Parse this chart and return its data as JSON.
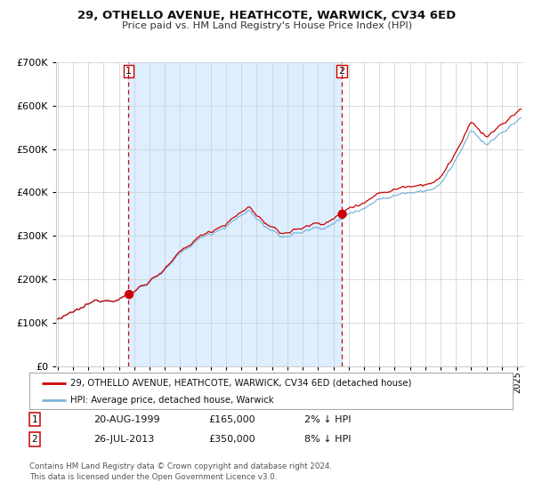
{
  "title": "29, OTHELLO AVENUE, HEATHCOTE, WARWICK, CV34 6ED",
  "subtitle": "Price paid vs. HM Land Registry's House Price Index (HPI)",
  "legend_line1": "29, OTHELLO AVENUE, HEATHCOTE, WARWICK, CV34 6ED (detached house)",
  "legend_line2": "HPI: Average price, detached house, Warwick",
  "sale1_date": "20-AUG-1999",
  "sale1_price": 165000,
  "sale1_label": "2% ↓ HPI",
  "sale1_year": 1999.63,
  "sale2_date": "26-JUL-2013",
  "sale2_price": 350000,
  "sale2_label": "8% ↓ HPI",
  "sale2_year": 2013.55,
  "footnote1": "Contains HM Land Registry data © Crown copyright and database right 2024.",
  "footnote2": "This data is licensed under the Open Government Licence v3.0.",
  "hpi_color": "#7ab4d8",
  "property_color": "#cc0000",
  "span_color": "#ddeeff",
  "plot_bg_color": "#ffffff",
  "grid_color": "#cccccc",
  "vline_color": "#cc0000",
  "ylim": [
    0,
    700000
  ],
  "xlim_start": 1994.9,
  "xlim_end": 2025.4,
  "year_start": 1995,
  "year_end": 2025
}
